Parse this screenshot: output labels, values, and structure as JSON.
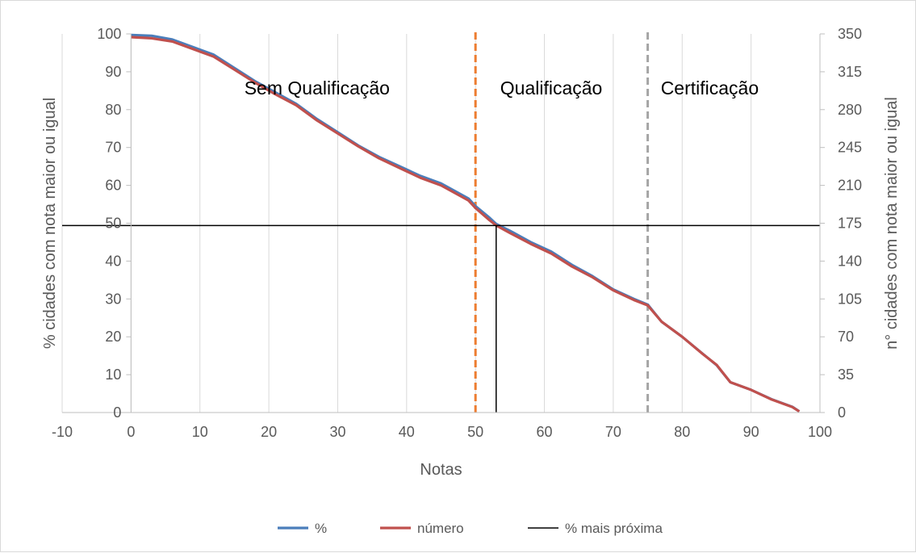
{
  "chart_data": {
    "type": "line",
    "title": "",
    "xlabel": "Notas",
    "ylabel": "% cidades com nota maior ou igual",
    "y2label": "n° cidades com nota maior ou igual",
    "xlim": [
      -10,
      100
    ],
    "ylim": [
      0,
      100
    ],
    "y2lim": [
      0,
      350
    ],
    "x_ticks": [
      -10,
      0,
      10,
      20,
      30,
      40,
      50,
      60,
      70,
      80,
      90,
      100
    ],
    "y_ticks": [
      0,
      10,
      20,
      30,
      40,
      50,
      60,
      70,
      80,
      90,
      100
    ],
    "y2_ticks": [
      0,
      35,
      70,
      105,
      140,
      175,
      210,
      245,
      280,
      315,
      350
    ],
    "grid": {
      "vertical": true,
      "horizontal": false
    },
    "legend_position": "bottom",
    "series": [
      {
        "name": "%",
        "color": "#4a7ebb",
        "axis": "left",
        "x": [
          0,
          3,
          6,
          9,
          12,
          15,
          18,
          21,
          24,
          27,
          30,
          33,
          36,
          39,
          42,
          45,
          47,
          49,
          50,
          52,
          53,
          55,
          58,
          61,
          64,
          67,
          70,
          73,
          75,
          77,
          80,
          83,
          85,
          87,
          90,
          93,
          96,
          97
        ],
        "values": [
          99.7,
          99.5,
          98.5,
          96.5,
          94.5,
          91,
          87.5,
          84.5,
          81.5,
          77.5,
          74,
          70.5,
          67.5,
          65,
          62.5,
          60.5,
          58.5,
          56.5,
          54.5,
          51.5,
          49.8,
          48,
          45,
          42.5,
          39,
          36,
          32.5,
          30,
          28.5,
          24,
          20,
          15.5,
          12.5,
          8,
          6,
          3.5,
          1.5,
          0.3
        ]
      },
      {
        "name": "número",
        "color": "#c0504d",
        "axis": "right",
        "x": [
          0,
          3,
          6,
          9,
          12,
          15,
          18,
          21,
          24,
          27,
          30,
          33,
          36,
          39,
          42,
          45,
          47,
          49,
          50,
          52,
          53,
          55,
          58,
          61,
          64,
          67,
          70,
          73,
          75,
          77,
          80,
          83,
          85,
          87,
          90,
          93,
          96,
          97
        ],
        "values": [
          347,
          346,
          343,
          336,
          329,
          317,
          305,
          294,
          284,
          270,
          258,
          246,
          235,
          226,
          217,
          210,
          203,
          196,
          189,
          178,
          173,
          166,
          156,
          147,
          135,
          125,
          113,
          104,
          99,
          84,
          70,
          54,
          44,
          28,
          21,
          12,
          5,
          1
        ]
      },
      {
        "name": "% mais próxima",
        "color": "#000000",
        "axis": "left",
        "segments": [
          {
            "x": [
              -10,
              100
            ],
            "y": [
              49.4,
              49.4
            ]
          },
          {
            "x": [
              53,
              53
            ],
            "y": [
              0,
              49.4
            ]
          }
        ]
      }
    ],
    "reference_lines": [
      {
        "x": 50,
        "color": "#ed7d31",
        "style": "dashed"
      },
      {
        "x": 75,
        "color": "#a5a5a5",
        "style": "dashed"
      }
    ],
    "annotations": [
      {
        "text": "Sem Qualificação",
        "x": 27
      },
      {
        "text": "Qualificação",
        "x": 61
      },
      {
        "text": "Certificação",
        "x": 84
      }
    ]
  }
}
